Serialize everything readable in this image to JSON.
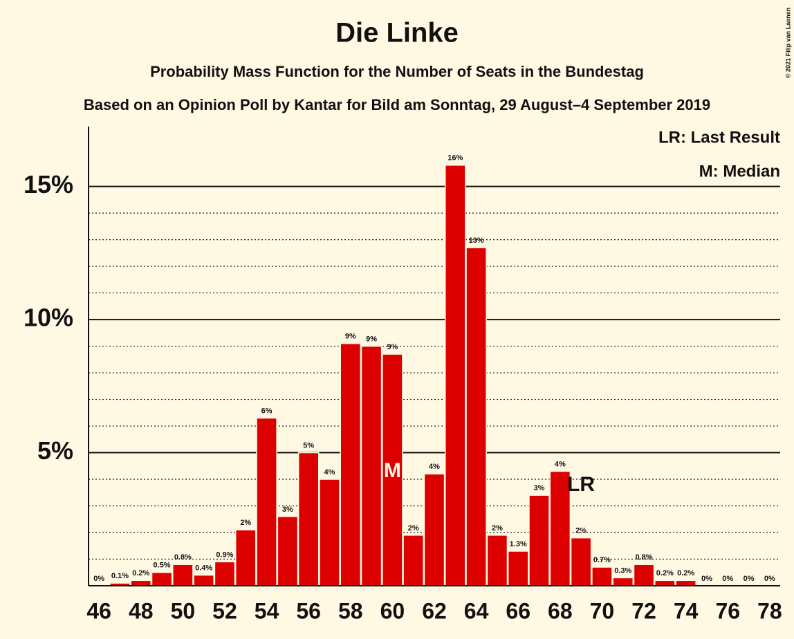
{
  "chart_data": {
    "type": "bar",
    "title": "Die Linke",
    "subtitle": "Probability Mass Function for the Number of Seats in the Bundestag",
    "subtitle2": "Based on an Opinion Poll by Kantar for Bild am Sonntag, 29 August–4 September 2019",
    "copyright": "© 2021 Filip van Laenen",
    "legend": [
      "LR: Last Result",
      "M: Median"
    ],
    "x": [
      46,
      47,
      48,
      49,
      50,
      51,
      52,
      53,
      54,
      55,
      56,
      57,
      58,
      59,
      60,
      61,
      62,
      63,
      64,
      65,
      66,
      67,
      68,
      69,
      70,
      71,
      72,
      73,
      74,
      75,
      76,
      77,
      78
    ],
    "values": [
      0,
      0.1,
      0.2,
      0.5,
      0.8,
      0.4,
      0.9,
      2.1,
      6.3,
      2.6,
      5.0,
      4.0,
      9.1,
      9.0,
      8.7,
      1.9,
      4.2,
      15.8,
      12.7,
      1.9,
      1.3,
      3.4,
      4.3,
      1.8,
      0.7,
      0.3,
      0.8,
      0.2,
      0.2,
      0,
      0,
      0,
      0
    ],
    "value_labels": [
      "0%",
      "0.1%",
      "0.2%",
      "0.5%",
      "0.8%",
      "0.4%",
      "0.9%",
      "2%",
      "6%",
      "3%",
      "5%",
      "4%",
      "9%",
      "9%",
      "9%",
      "2%",
      "4%",
      "16%",
      "13%",
      "2%",
      "1.3%",
      "3%",
      "4%",
      "2%",
      "0.7%",
      "0.3%",
      "0.8%",
      "0.2%",
      "0.2%",
      "0%",
      "0%",
      "0%",
      "0%"
    ],
    "color": "#dd0000",
    "xlim": [
      45.5,
      78.5
    ],
    "xticks": [
      46,
      48,
      50,
      52,
      54,
      56,
      58,
      60,
      62,
      64,
      66,
      68,
      70,
      72,
      74,
      76,
      78
    ],
    "ylim": [
      0,
      17.25
    ],
    "yticks": [
      {
        "value": 5,
        "label": "5%"
      },
      {
        "value": 10,
        "label": "10%"
      },
      {
        "value": 15,
        "label": "15%"
      }
    ],
    "minor_yticks": [
      1,
      2,
      3,
      4,
      6,
      7,
      8,
      9,
      11,
      12,
      13,
      14
    ],
    "grid": true,
    "median": {
      "x": 60,
      "label": "M"
    },
    "last_result": {
      "x": 69,
      "label": "LR"
    }
  }
}
